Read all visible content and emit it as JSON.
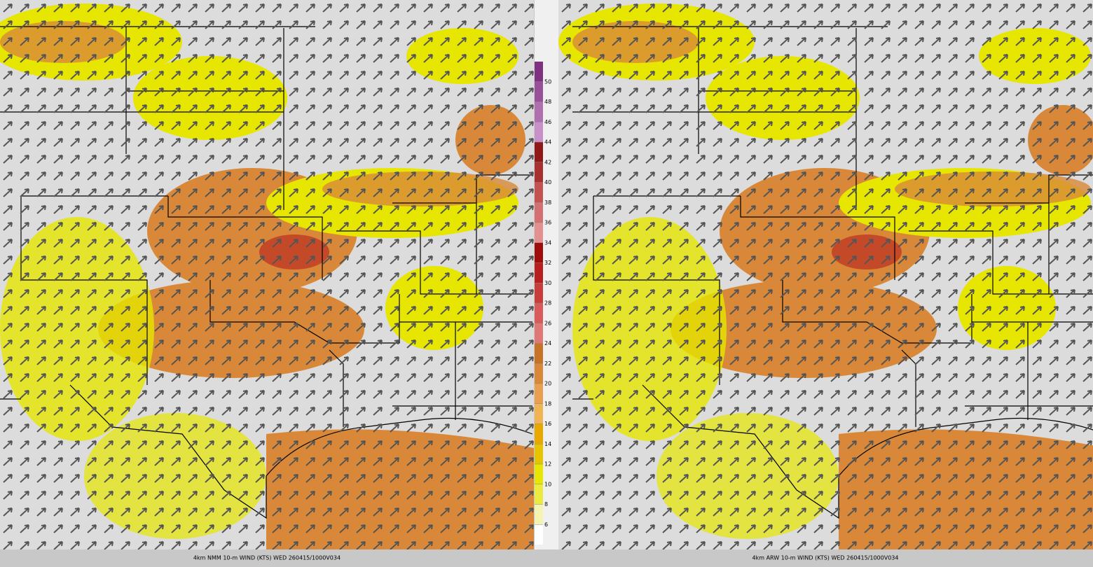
{
  "panels": [
    {
      "caption": "4km NMM 10-m WIND (KTS) WED 260415/1000V034"
    },
    {
      "caption": "4km ARW 10-m WIND (KTS) WED 260415/1000V034"
    }
  ],
  "colorbar": {
    "levels": [
      6,
      8,
      10,
      12,
      14,
      16,
      18,
      20,
      22,
      24,
      26,
      28,
      30,
      32,
      34,
      36,
      38,
      40,
      42,
      44,
      46,
      48,
      50
    ],
    "colors": [
      "#ffffff",
      "#f4f4b0",
      "#eaea40",
      "#e6e600",
      "#e6c400",
      "#e8a800",
      "#f0b454",
      "#e8a050",
      "#d88838",
      "#c87228",
      "#e07878",
      "#d85a5a",
      "#c83c3c",
      "#b82020",
      "#a00c0c",
      "#e29090",
      "#d47070",
      "#c45050",
      "#a83030",
      "#901818",
      "#c890c8",
      "#b070b0",
      "#985098",
      "#803080"
    ]
  }
}
